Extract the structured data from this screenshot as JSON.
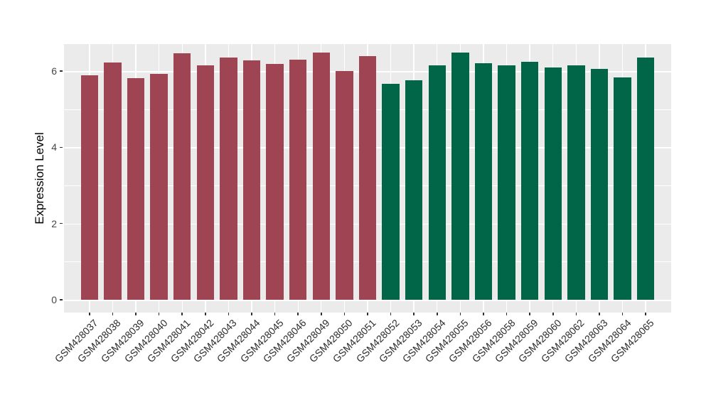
{
  "figure": {
    "background_color": "#ffffff",
    "panel_color": "#ebebeb",
    "gridline_color": "#ffffff",
    "tick_color": "#333333",
    "axis_text_color": "#2b2b2b",
    "axis_title_color": "#000000"
  },
  "chart_data": {
    "type": "bar",
    "title": "",
    "xlabel": "",
    "ylabel": "Expression Level",
    "ylim": [
      0,
      6.7
    ],
    "yticks": [
      0,
      2,
      4,
      6
    ],
    "yminor_ticks": [
      1,
      3,
      5
    ],
    "grid": "major and minor white gridlines on grey panel",
    "legend_position": "none",
    "x_tick_rotation": 45,
    "group_colors": {
      "group1": "#9e4452",
      "group2": "#006647"
    },
    "bars": [
      {
        "label": "GSM428037",
        "value": 5.89,
        "group": "group1"
      },
      {
        "label": "GSM428038",
        "value": 6.22,
        "group": "group1"
      },
      {
        "label": "GSM428039",
        "value": 5.81,
        "group": "group1"
      },
      {
        "label": "GSM428040",
        "value": 5.92,
        "group": "group1"
      },
      {
        "label": "GSM428041",
        "value": 6.46,
        "group": "group1"
      },
      {
        "label": "GSM428042",
        "value": 6.14,
        "group": "group1"
      },
      {
        "label": "GSM428043",
        "value": 6.36,
        "group": "group1"
      },
      {
        "label": "GSM428044",
        "value": 6.28,
        "group": "group1"
      },
      {
        "label": "GSM428045",
        "value": 6.19,
        "group": "group1"
      },
      {
        "label": "GSM428046",
        "value": 6.3,
        "group": "group1"
      },
      {
        "label": "GSM428049",
        "value": 6.48,
        "group": "group1"
      },
      {
        "label": "GSM428050",
        "value": 6.0,
        "group": "group1"
      },
      {
        "label": "GSM428051",
        "value": 6.39,
        "group": "group1"
      },
      {
        "label": "GSM428052",
        "value": 5.66,
        "group": "group2"
      },
      {
        "label": "GSM428053",
        "value": 5.75,
        "group": "group2"
      },
      {
        "label": "GSM428054",
        "value": 6.14,
        "group": "group2"
      },
      {
        "label": "GSM428055",
        "value": 6.48,
        "group": "group2"
      },
      {
        "label": "GSM428056",
        "value": 6.2,
        "group": "group2"
      },
      {
        "label": "GSM428058",
        "value": 6.14,
        "group": "group2"
      },
      {
        "label": "GSM428059",
        "value": 6.25,
        "group": "group2"
      },
      {
        "label": "GSM428060",
        "value": 6.1,
        "group": "group2"
      },
      {
        "label": "GSM428062",
        "value": 6.14,
        "group": "group2"
      },
      {
        "label": "GSM428063",
        "value": 6.05,
        "group": "group2"
      },
      {
        "label": "GSM428064",
        "value": 5.84,
        "group": "group2"
      },
      {
        "label": "GSM428065",
        "value": 6.35,
        "group": "group2"
      }
    ]
  }
}
